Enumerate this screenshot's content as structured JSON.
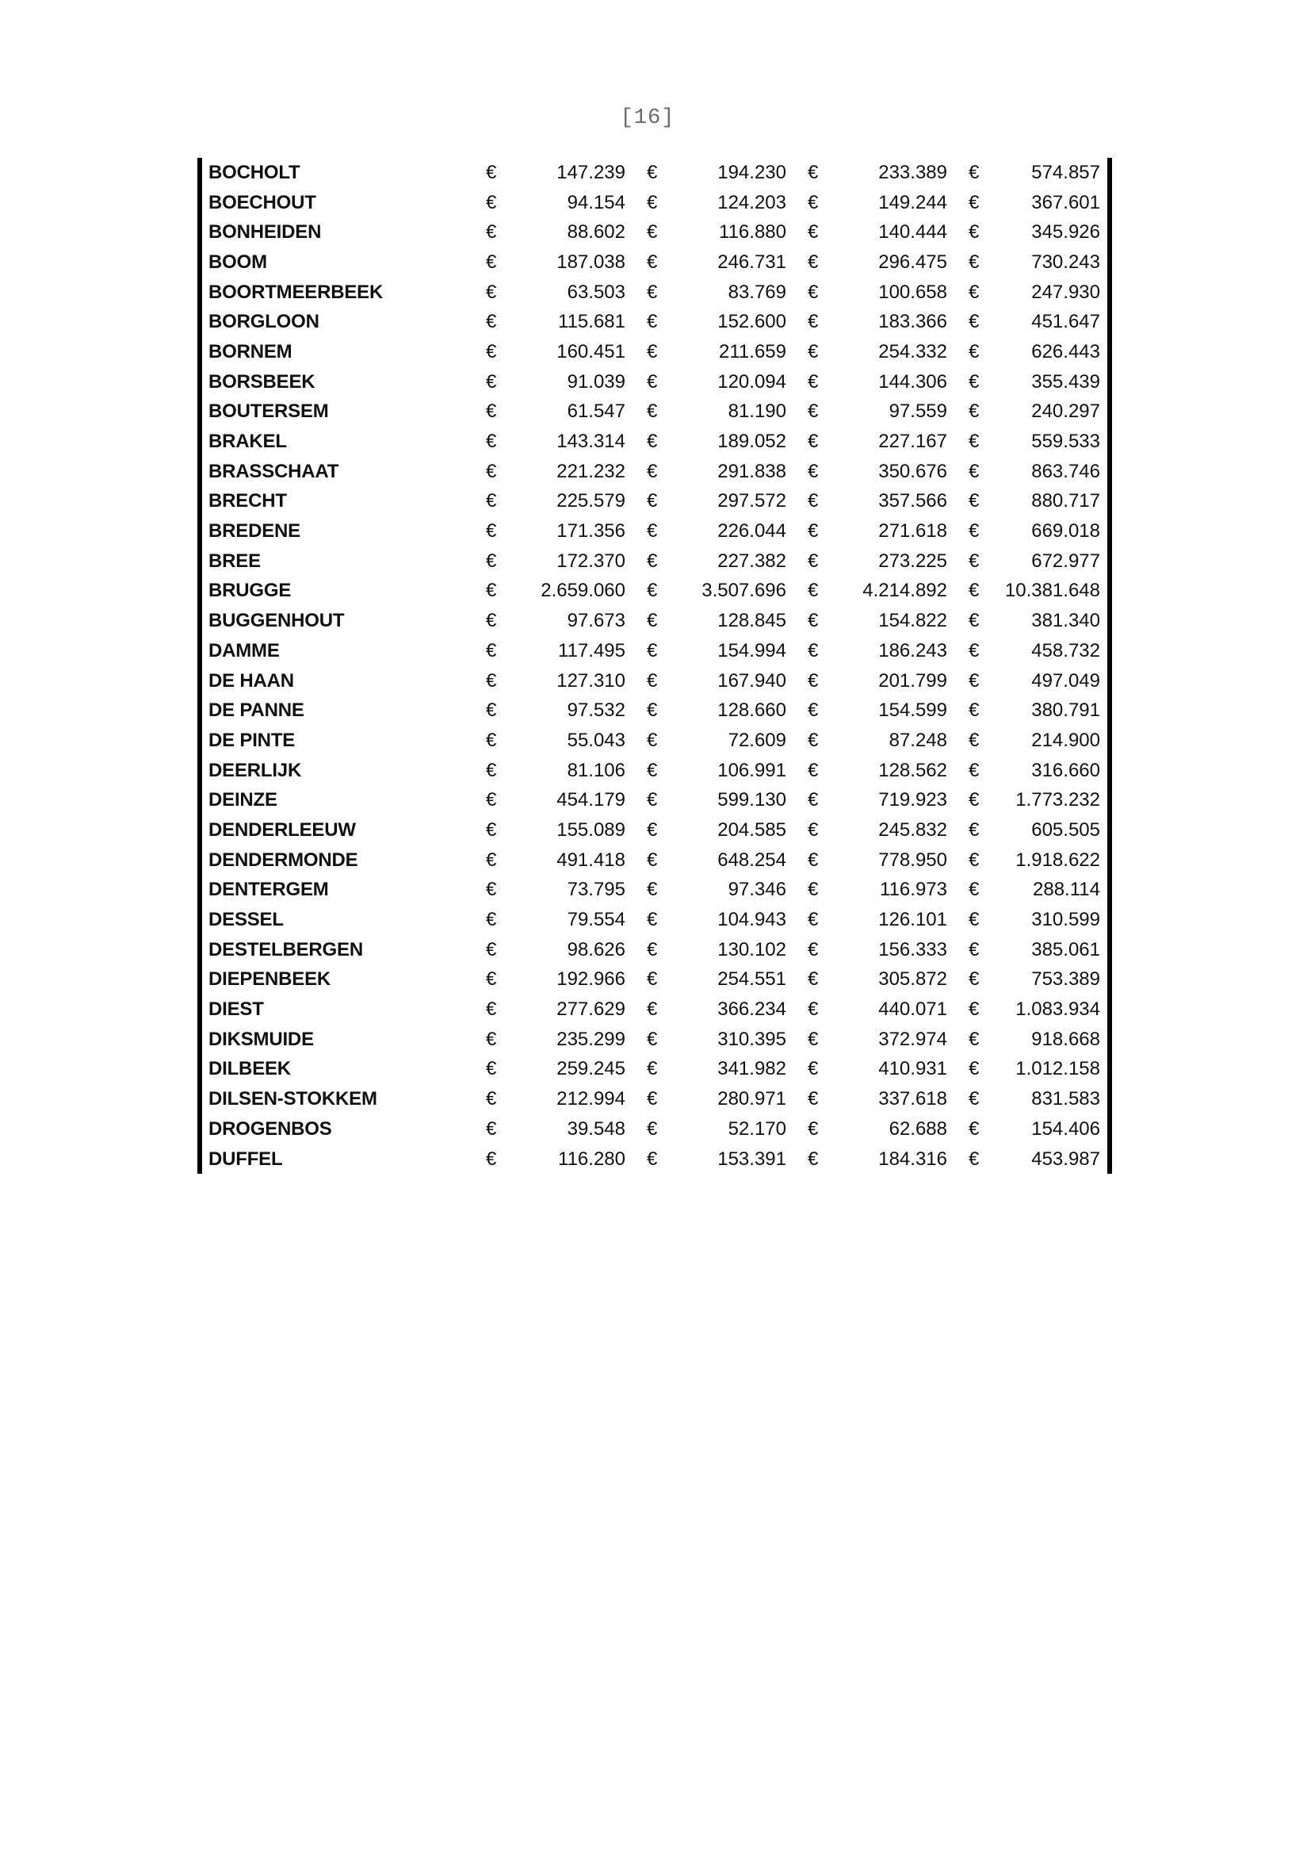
{
  "page": {
    "number_label": "[16]"
  },
  "colors": {
    "text": "#101010",
    "page_number": "#6a6a6a",
    "table_border": "#000000",
    "background": "#ffffff"
  },
  "table": {
    "currency_symbol": "€",
    "rows": [
      {
        "name": "BOCHOLT",
        "values": [
          "147.239",
          "194.230",
          "233.389",
          "574.857"
        ]
      },
      {
        "name": "BOECHOUT",
        "values": [
          "94.154",
          "124.203",
          "149.244",
          "367.601"
        ]
      },
      {
        "name": "BONHEIDEN",
        "values": [
          "88.602",
          "116.880",
          "140.444",
          "345.926"
        ]
      },
      {
        "name": "BOOM",
        "values": [
          "187.038",
          "246.731",
          "296.475",
          "730.243"
        ]
      },
      {
        "name": "BOORTMEERBEEK",
        "values": [
          "63.503",
          "83.769",
          "100.658",
          "247.930"
        ]
      },
      {
        "name": "BORGLOON",
        "values": [
          "115.681",
          "152.600",
          "183.366",
          "451.647"
        ]
      },
      {
        "name": "BORNEM",
        "values": [
          "160.451",
          "211.659",
          "254.332",
          "626.443"
        ]
      },
      {
        "name": "BORSBEEK",
        "values": [
          "91.039",
          "120.094",
          "144.306",
          "355.439"
        ]
      },
      {
        "name": "BOUTERSEM",
        "values": [
          "61.547",
          "81.190",
          "97.559",
          "240.297"
        ]
      },
      {
        "name": "BRAKEL",
        "values": [
          "143.314",
          "189.052",
          "227.167",
          "559.533"
        ]
      },
      {
        "name": "BRASSCHAAT",
        "values": [
          "221.232",
          "291.838",
          "350.676",
          "863.746"
        ]
      },
      {
        "name": "BRECHT",
        "values": [
          "225.579",
          "297.572",
          "357.566",
          "880.717"
        ]
      },
      {
        "name": "BREDENE",
        "values": [
          "171.356",
          "226.044",
          "271.618",
          "669.018"
        ]
      },
      {
        "name": "BREE",
        "values": [
          "172.370",
          "227.382",
          "273.225",
          "672.977"
        ]
      },
      {
        "name": "BRUGGE",
        "values": [
          "2.659.060",
          "3.507.696",
          "4.214.892",
          "10.381.648"
        ]
      },
      {
        "name": "BUGGENHOUT",
        "values": [
          "97.673",
          "128.845",
          "154.822",
          "381.340"
        ]
      },
      {
        "name": "DAMME",
        "values": [
          "117.495",
          "154.994",
          "186.243",
          "458.732"
        ]
      },
      {
        "name": "DE HAAN",
        "values": [
          "127.310",
          "167.940",
          "201.799",
          "497.049"
        ]
      },
      {
        "name": "DE PANNE",
        "values": [
          "97.532",
          "128.660",
          "154.599",
          "380.791"
        ]
      },
      {
        "name": "DE PINTE",
        "values": [
          "55.043",
          "72.609",
          "87.248",
          "214.900"
        ]
      },
      {
        "name": "DEERLIJK",
        "values": [
          "81.106",
          "106.991",
          "128.562",
          "316.660"
        ]
      },
      {
        "name": "DEINZE",
        "values": [
          "454.179",
          "599.130",
          "719.923",
          "1.773.232"
        ]
      },
      {
        "name": "DENDERLEEUW",
        "values": [
          "155.089",
          "204.585",
          "245.832",
          "605.505"
        ]
      },
      {
        "name": "DENDERMONDE",
        "values": [
          "491.418",
          "648.254",
          "778.950",
          "1.918.622"
        ]
      },
      {
        "name": "DENTERGEM",
        "values": [
          "73.795",
          "97.346",
          "116.973",
          "288.114"
        ]
      },
      {
        "name": "DESSEL",
        "values": [
          "79.554",
          "104.943",
          "126.101",
          "310.599"
        ]
      },
      {
        "name": "DESTELBERGEN",
        "values": [
          "98.626",
          "130.102",
          "156.333",
          "385.061"
        ]
      },
      {
        "name": "DIEPENBEEK",
        "values": [
          "192.966",
          "254.551",
          "305.872",
          "753.389"
        ]
      },
      {
        "name": "DIEST",
        "values": [
          "277.629",
          "366.234",
          "440.071",
          "1.083.934"
        ]
      },
      {
        "name": "DIKSMUIDE",
        "values": [
          "235.299",
          "310.395",
          "372.974",
          "918.668"
        ]
      },
      {
        "name": "DILBEEK",
        "values": [
          "259.245",
          "341.982",
          "410.931",
          "1.012.158"
        ]
      },
      {
        "name": "DILSEN-STOKKEM",
        "values": [
          "212.994",
          "280.971",
          "337.618",
          "831.583"
        ]
      },
      {
        "name": "DROGENBOS",
        "values": [
          "39.548",
          "52.170",
          "62.688",
          "154.406"
        ]
      },
      {
        "name": "DUFFEL",
        "values": [
          "116.280",
          "153.391",
          "184.316",
          "453.987"
        ]
      }
    ]
  }
}
